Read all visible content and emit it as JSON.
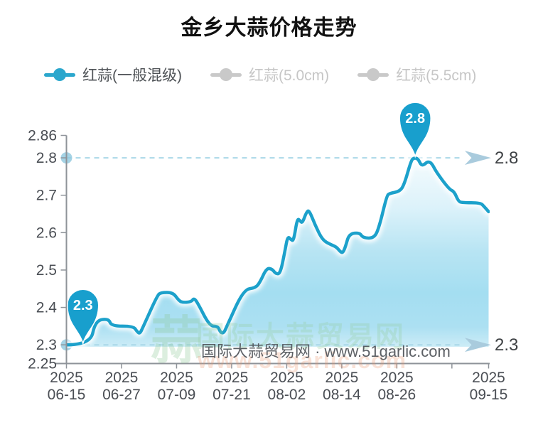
{
  "title": "金乡大蒜价格走势",
  "legend": {
    "position": "top",
    "items": [
      {
        "label": "红蒜(一般混级)",
        "active": true
      },
      {
        "label": "红蒜(5.0cm)",
        "active": false
      },
      {
        "label": "红蒜(5.5cm)",
        "active": false
      }
    ]
  },
  "watermark": {
    "glyph": "蒜",
    "ghost_text": "国际大蒜贸易网",
    "ghost_url": "www.51garlic.com",
    "main": "国际大蒜贸易网 · www.51garlic.com"
  },
  "colors": {
    "line": "#1CA1CB",
    "pin": "#189FCD",
    "legend_active": "#2BA7CD",
    "legend_inactive": "#C9C9C9",
    "dash_line": "#A9D8E8",
    "arrow": "#A9CBDD",
    "axis_dot": "#8FC8DF",
    "fill_mid": "#A4DEF1",
    "axis_line": "#8E9399",
    "axis_text": "#4A4E54",
    "ref_label_text": "#3F4245",
    "pin_text": "#FFFFFF"
  },
  "chart_data": {
    "type": "area",
    "title": "金乡大蒜价格走势",
    "series_name": "红蒜(一般混级)",
    "xlabel": "",
    "ylabel": "",
    "grid": false,
    "legend_position": "top",
    "x_unit": "days since 2025-06-15",
    "xlim": [
      0,
      92
    ],
    "ylim": [
      2.25,
      2.86
    ],
    "y_ticks": [
      {
        "value": 2.25,
        "label": "2.25"
      },
      {
        "value": 2.3,
        "label": "2.3"
      },
      {
        "value": 2.4,
        "label": "2.4"
      },
      {
        "value": 2.5,
        "label": "2.5"
      },
      {
        "value": 2.6,
        "label": "2.6"
      },
      {
        "value": 2.7,
        "label": "2.7"
      },
      {
        "value": 2.8,
        "label": "2.8"
      },
      {
        "value": 2.86,
        "label": "2.86"
      }
    ],
    "x_ticks": [
      {
        "day": 0,
        "line1": "2025",
        "line2": "06-15"
      },
      {
        "day": 12,
        "line1": "2025",
        "line2": "06-27"
      },
      {
        "day": 24,
        "line1": "2025",
        "line2": "07-09"
      },
      {
        "day": 36,
        "line1": "2025",
        "line2": "07-21"
      },
      {
        "day": 48,
        "line1": "2025",
        "line2": "08-02"
      },
      {
        "day": 60,
        "line1": "2025",
        "line2": "08-14"
      },
      {
        "day": 72,
        "line1": "2025",
        "line2": "08-26"
      },
      {
        "day": 84,
        "line1": "",
        "line2": ""
      },
      {
        "day": 92,
        "line1": "2025",
        "line2": "09-15"
      }
    ],
    "ref_lines": [
      {
        "value": 2.8,
        "label": "2.8"
      },
      {
        "value": 2.3,
        "label": "2.3"
      }
    ],
    "markers": [
      {
        "type": "min",
        "label": "2.3",
        "day": 3.6,
        "value": 2.3
      },
      {
        "type": "max",
        "label": "2.8",
        "day": 76,
        "value": 2.8
      }
    ],
    "points": [
      [
        0,
        2.3
      ],
      [
        5.2,
        2.3
      ],
      [
        6.3,
        2.365
      ],
      [
        9.2,
        2.37
      ],
      [
        9.8,
        2.35
      ],
      [
        14.6,
        2.35
      ],
      [
        15.4,
        2.335
      ],
      [
        16,
        2.33
      ],
      [
        16.6,
        2.345
      ],
      [
        19.8,
        2.432
      ],
      [
        20.6,
        2.44
      ],
      [
        23.2,
        2.44
      ],
      [
        24.4,
        2.42
      ],
      [
        25.2,
        2.413
      ],
      [
        27.2,
        2.415
      ],
      [
        27.8,
        2.425
      ],
      [
        28.6,
        2.412
      ],
      [
        31.2,
        2.35
      ],
      [
        33,
        2.35
      ],
      [
        33.6,
        2.332
      ],
      [
        34.3,
        2.332
      ],
      [
        34.9,
        2.348
      ],
      [
        38.6,
        2.448
      ],
      [
        41.2,
        2.452
      ],
      [
        42.2,
        2.468
      ],
      [
        43.6,
        2.505
      ],
      [
        44.8,
        2.503
      ],
      [
        45.6,
        2.49
      ],
      [
        46.6,
        2.49
      ],
      [
        47.6,
        2.55
      ],
      [
        48.2,
        2.59
      ],
      [
        48.9,
        2.582
      ],
      [
        49.5,
        2.577
      ],
      [
        50.3,
        2.638
      ],
      [
        50.9,
        2.632
      ],
      [
        51.4,
        2.625
      ],
      [
        52.3,
        2.655
      ],
      [
        52.9,
        2.66
      ],
      [
        54.2,
        2.62
      ],
      [
        55.8,
        2.58
      ],
      [
        57.6,
        2.568
      ],
      [
        58.8,
        2.562
      ],
      [
        59.6,
        2.55
      ],
      [
        60.2,
        2.545
      ],
      [
        60.8,
        2.562
      ],
      [
        61.6,
        2.597
      ],
      [
        63.9,
        2.6
      ],
      [
        64.6,
        2.586
      ],
      [
        67.1,
        2.585
      ],
      [
        68.2,
        2.617
      ],
      [
        69.8,
        2.698
      ],
      [
        70.4,
        2.705
      ],
      [
        72.6,
        2.71
      ],
      [
        73.6,
        2.728
      ],
      [
        75.1,
        2.792
      ],
      [
        75.7,
        2.8
      ],
      [
        76.6,
        2.798
      ],
      [
        77.3,
        2.78
      ],
      [
        78,
        2.782
      ],
      [
        78.7,
        2.79
      ],
      [
        79.6,
        2.786
      ],
      [
        80.6,
        2.762
      ],
      [
        83.4,
        2.716
      ],
      [
        84.5,
        2.71
      ],
      [
        85.4,
        2.684
      ],
      [
        86.2,
        2.68
      ],
      [
        90.2,
        2.68
      ],
      [
        91,
        2.67
      ],
      [
        92,
        2.656
      ]
    ]
  }
}
